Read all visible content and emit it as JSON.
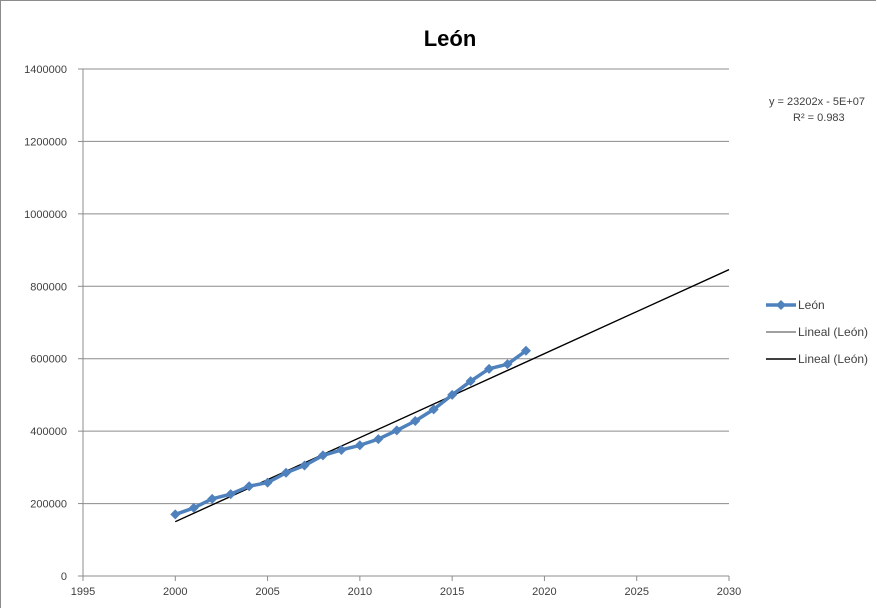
{
  "chart_data": {
    "type": "line",
    "title": "León",
    "xlim": [
      1995,
      2030
    ],
    "ylim": [
      0,
      1400000
    ],
    "x_ticks": [
      1995,
      2000,
      2005,
      2010,
      2015,
      2020,
      2025,
      2030
    ],
    "y_ticks": [
      0,
      200000,
      400000,
      600000,
      800000,
      1000000,
      1200000,
      1400000
    ],
    "grid": "horizontal",
    "legend_position": "right",
    "series": [
      {
        "name": "León",
        "color": "#4f81bd",
        "marker": "diamond",
        "x": [
          2000,
          2001,
          2002,
          2003,
          2004,
          2005,
          2006,
          2007,
          2008,
          2009,
          2010,
          2011,
          2012,
          2013,
          2014,
          2015,
          2016,
          2017,
          2018,
          2019
        ],
        "y": [
          170000,
          188000,
          213000,
          226000,
          248000,
          258000,
          285000,
          305000,
          333000,
          348000,
          361000,
          378000,
          402000,
          428000,
          460000,
          500000,
          538000,
          572000,
          585000,
          622000
        ]
      }
    ],
    "trendlines": [
      {
        "name": "Lineal (León)",
        "color": "#808080",
        "x": [
          2000,
          2030
        ],
        "y": [
          150000,
          846000
        ]
      },
      {
        "name": "Lineal (León)",
        "color": "#000000",
        "x": [
          2000,
          2030
        ],
        "y": [
          150000,
          846000
        ]
      }
    ],
    "trendline_equation": "y = 23202x - 5E+07",
    "r_squared": "R² = 0.983"
  }
}
